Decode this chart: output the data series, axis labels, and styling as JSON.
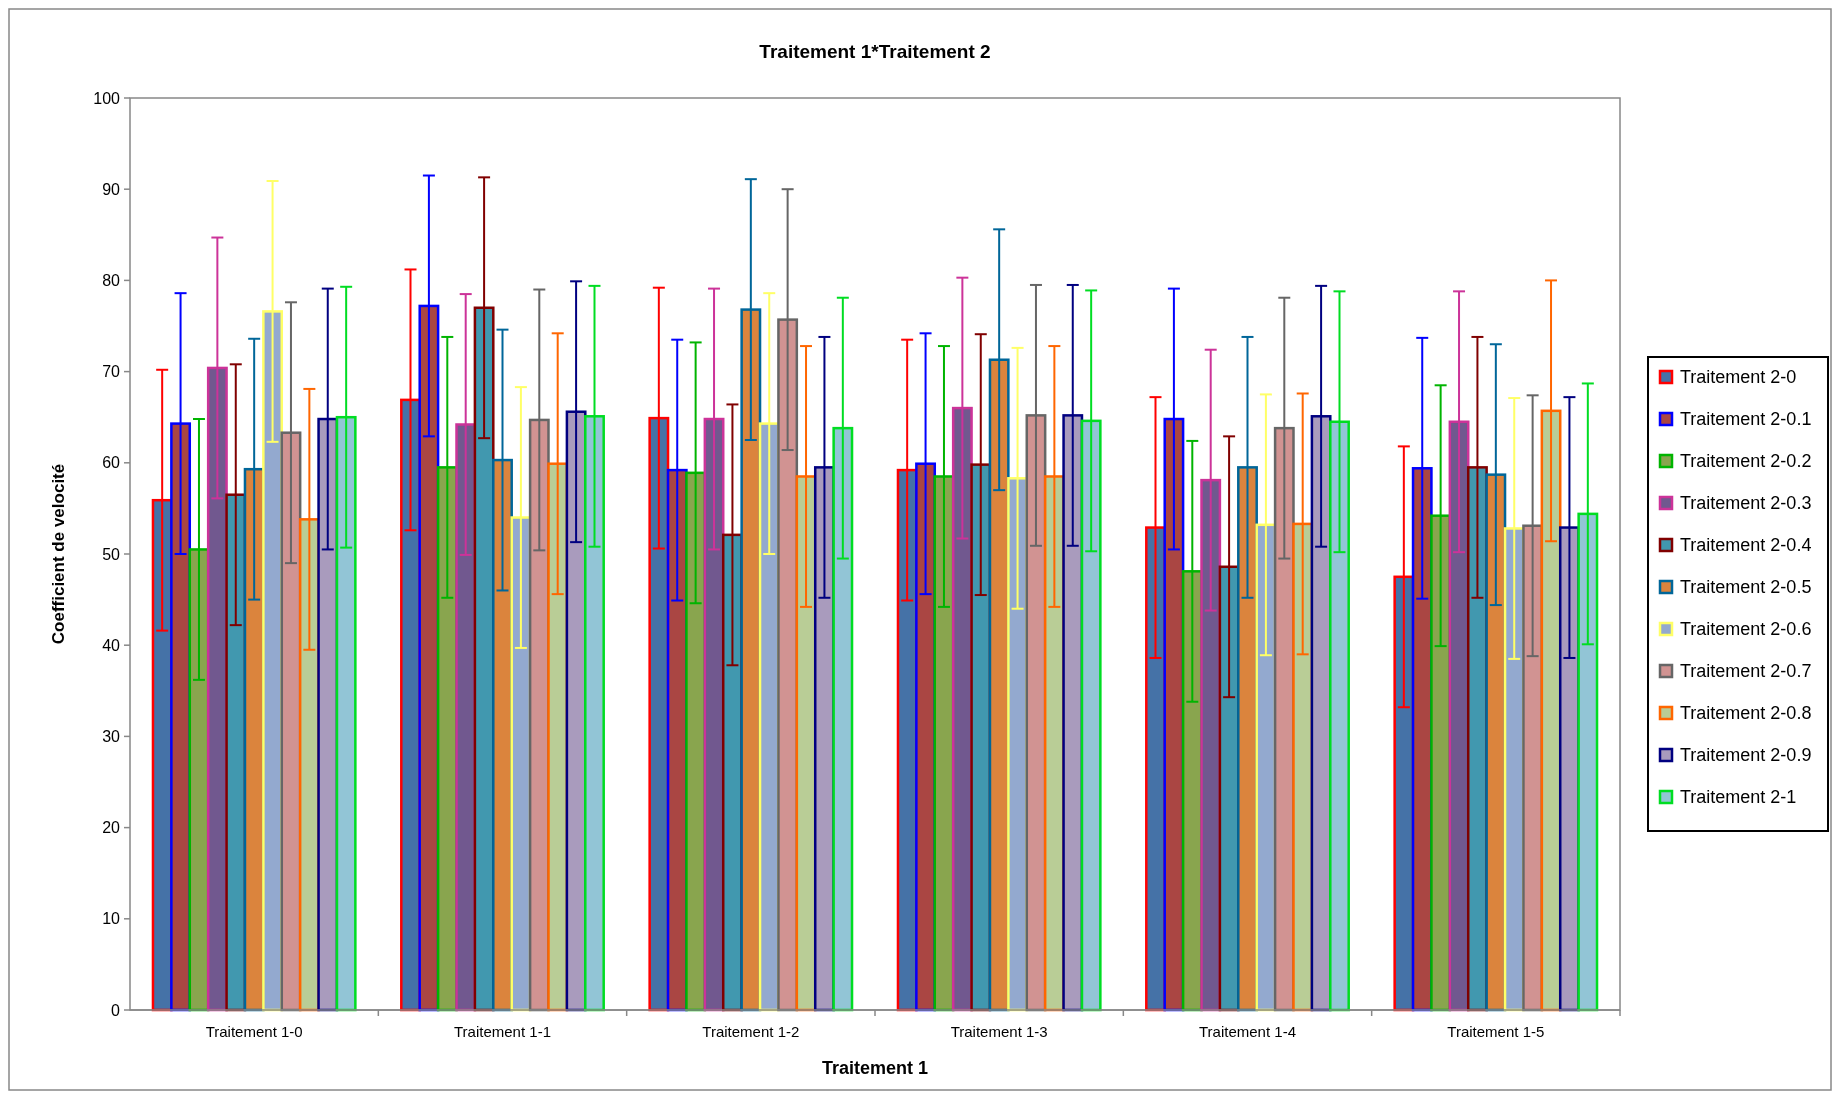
{
  "chart_data": {
    "type": "bar",
    "title": "Traitement 1*Traitement 2",
    "xlabel": "Traitement 1",
    "ylabel": "Coefficient de velocité",
    "categories": [
      "Traitement 1-0",
      "Traitement 1-1",
      "Traitement 1-2",
      "Traitement 1-3",
      "Traitement 1-4",
      "Traitement 1-5"
    ],
    "ylim": [
      0,
      100
    ],
    "yticks": [
      0,
      10,
      20,
      30,
      40,
      50,
      60,
      70,
      80,
      90,
      100
    ],
    "grid": false,
    "legend": "right",
    "series": [
      {
        "name": "Traitement 2-0",
        "color": "#ff0000",
        "values": [
          55.9,
          66.9,
          64.9,
          59.2,
          52.9,
          47.5
        ],
        "errors": [
          14.3,
          14.3,
          14.3,
          14.3,
          14.3,
          14.3
        ]
      },
      {
        "name": "Traitement 2-0.1",
        "color": "#0000ff",
        "values": [
          64.3,
          77.2,
          59.2,
          59.9,
          64.8,
          59.4
        ],
        "errors": [
          14.3,
          14.3,
          14.3,
          14.3,
          14.3,
          14.3
        ]
      },
      {
        "name": "Traitement 2-0.2",
        "color": "#00b400",
        "values": [
          50.5,
          59.5,
          58.9,
          58.5,
          48.1,
          54.2
        ],
        "errors": [
          14.3,
          14.3,
          14.3,
          14.3,
          14.3,
          14.3
        ]
      },
      {
        "name": "Traitement 2-0.3",
        "color": "#cc3399",
        "values": [
          70.4,
          64.2,
          64.8,
          66.0,
          58.1,
          64.5
        ],
        "errors": [
          14.3,
          14.3,
          14.3,
          14.3,
          14.3,
          14.3
        ]
      },
      {
        "name": "Traitement 2-0.4",
        "color": "#800000",
        "values": [
          56.5,
          77.0,
          52.1,
          59.8,
          48.6,
          59.5
        ],
        "errors": [
          14.3,
          14.3,
          14.3,
          14.3,
          14.3,
          14.3
        ]
      },
      {
        "name": "Traitement 2-0.5",
        "color": "#006699",
        "values": [
          59.3,
          60.3,
          76.8,
          71.3,
          59.5,
          58.7
        ],
        "errors": [
          14.3,
          14.3,
          14.3,
          14.3,
          14.3,
          14.3
        ]
      },
      {
        "name": "Traitement 2-0.6",
        "color": "#ffff66",
        "values": [
          76.6,
          54.0,
          64.3,
          58.3,
          53.2,
          52.8
        ],
        "errors": [
          14.3,
          14.3,
          14.3,
          14.3,
          14.3,
          14.3
        ]
      },
      {
        "name": "Traitement 2-0.7",
        "color": "#666666",
        "values": [
          63.3,
          64.7,
          75.7,
          65.2,
          63.8,
          53.1
        ],
        "errors": [
          14.3,
          14.3,
          14.3,
          14.3,
          14.3,
          14.3
        ]
      },
      {
        "name": "Traitement 2-0.8",
        "color": "#ff6600",
        "values": [
          53.8,
          59.9,
          58.5,
          58.5,
          53.3,
          65.7
        ],
        "errors": [
          14.3,
          14.3,
          14.3,
          14.3,
          14.3,
          14.3
        ]
      },
      {
        "name": "Traitement 2-0.9",
        "color": "#000080",
        "values": [
          64.8,
          65.6,
          59.5,
          65.2,
          65.1,
          52.9
        ],
        "errors": [
          14.3,
          14.3,
          14.3,
          14.3,
          14.3,
          14.3
        ]
      },
      {
        "name": "Traitement 2-1",
        "color": "#00dd22",
        "values": [
          65.0,
          65.1,
          63.8,
          64.6,
          64.5,
          54.4
        ],
        "errors": [
          14.3,
          14.3,
          14.3,
          14.3,
          14.3,
          14.3
        ]
      }
    ]
  }
}
